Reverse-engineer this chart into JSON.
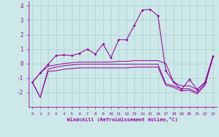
{
  "xlabel": "Windchill (Refroidissement éolien,°C)",
  "bg_color": "#cce8e8",
  "line_color": "#990099",
  "grid_color": "#aacccc",
  "x": [
    0,
    1,
    2,
    3,
    4,
    5,
    6,
    7,
    8,
    9,
    10,
    11,
    12,
    13,
    14,
    15,
    16,
    17,
    18,
    19,
    20,
    21,
    22,
    23
  ],
  "y_main": [
    -1.3,
    -0.65,
    -0.05,
    0.55,
    0.6,
    0.55,
    0.7,
    1.0,
    0.65,
    1.35,
    0.4,
    1.65,
    1.65,
    2.65,
    3.7,
    3.75,
    3.3,
    -0.5,
    -1.3,
    -1.8,
    -1.1,
    -1.8,
    -1.3,
    0.5
  ],
  "y_med": [
    -1.3,
    -0.65,
    -0.2,
    -0.1,
    0.0,
    0.05,
    0.1,
    0.1,
    0.1,
    0.1,
    0.1,
    0.15,
    0.15,
    0.2,
    0.2,
    0.2,
    0.2,
    0.0,
    -1.3,
    -1.55,
    -1.55,
    -1.8,
    -1.3,
    0.5
  ],
  "y_low1": [
    -1.3,
    -2.35,
    -0.4,
    -0.25,
    -0.15,
    -0.1,
    -0.05,
    -0.05,
    -0.05,
    -0.05,
    -0.05,
    -0.05,
    -0.05,
    -0.05,
    -0.05,
    -0.05,
    -0.05,
    -1.4,
    -1.55,
    -1.75,
    -1.75,
    -2.0,
    -1.4,
    0.45
  ],
  "y_low2": [
    -1.3,
    -2.35,
    -0.55,
    -0.5,
    -0.4,
    -0.35,
    -0.3,
    -0.3,
    -0.3,
    -0.3,
    -0.3,
    -0.3,
    -0.3,
    -0.25,
    -0.25,
    -0.25,
    -0.25,
    -1.5,
    -1.65,
    -1.9,
    -1.85,
    -2.1,
    -1.5,
    0.4
  ],
  "ylim": [
    -3.0,
    4.3
  ],
  "yticks": [
    -2,
    -1,
    0,
    1,
    2,
    3,
    4
  ],
  "xticks": [
    0,
    1,
    2,
    3,
    4,
    5,
    6,
    7,
    8,
    9,
    10,
    11,
    12,
    13,
    14,
    15,
    16,
    17,
    18,
    19,
    20,
    21,
    22,
    23
  ]
}
